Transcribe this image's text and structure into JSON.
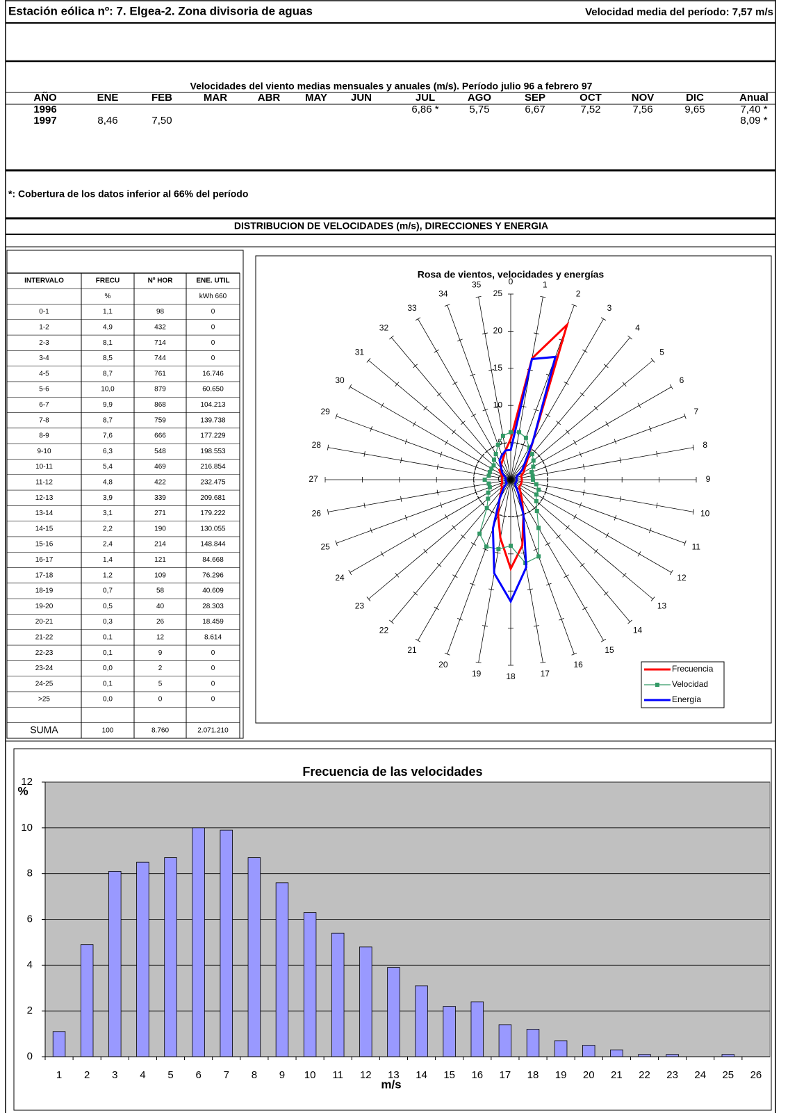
{
  "header": {
    "title": "Estación eólica nº: 7. Elgea-2. Zona divisoria de aguas",
    "mean_speed": "Velocidad media del período: 7,57 m/s"
  },
  "monthly_table": {
    "title": "Velocidades del viento medias mensuales y anuales (m/s). Período julio 96 a febrero 97",
    "columns": [
      "AÑO",
      "ENE",
      "FEB",
      "MAR",
      "ABR",
      "MAY",
      "JUN",
      "JUL",
      "AGO",
      "SEP",
      "OCT",
      "NOV",
      "DIC",
      "Anual"
    ],
    "rows": [
      [
        "1996",
        null,
        null,
        null,
        null,
        null,
        null,
        "6,86 *",
        "5,75",
        "6,67",
        "7,52",
        "7,56",
        "9,65",
        "7,40 *"
      ],
      [
        "1997",
        "8,46",
        "7,50",
        null,
        null,
        null,
        null,
        null,
        null,
        null,
        null,
        null,
        null,
        "8,09 *"
      ]
    ]
  },
  "note": "*: Cobertura de los datos inferior al 66% del período",
  "distribution": {
    "title": "DISTRIBUCION DE VELOCIDADES (m/s), DIRECCIONES Y ENERGIA",
    "columns": [
      "INTERVALO",
      "FRECU",
      "Nº HOR",
      "ENE. UTIL"
    ],
    "units": [
      null,
      "%",
      null,
      "kWh 660"
    ],
    "rows": [
      [
        "0-1",
        "1,1",
        "98",
        "0"
      ],
      [
        "1-2",
        "4,9",
        "432",
        "0"
      ],
      [
        "2-3",
        "8,1",
        "714",
        "0"
      ],
      [
        "3-4",
        "8,5",
        "744",
        "0"
      ],
      [
        "4-5",
        "8,7",
        "761",
        "16.746"
      ],
      [
        "5-6",
        "10,0",
        "879",
        "60.650"
      ],
      [
        "6-7",
        "9,9",
        "868",
        "104.213"
      ],
      [
        "7-8",
        "8,7",
        "759",
        "139.738"
      ],
      [
        "8-9",
        "7,6",
        "666",
        "177.229"
      ],
      [
        "9-10",
        "6,3",
        "548",
        "198.553"
      ],
      [
        "10-11",
        "5,4",
        "469",
        "216.854"
      ],
      [
        "11-12",
        "4,8",
        "422",
        "232.475"
      ],
      [
        "12-13",
        "3,9",
        "339",
        "209.681"
      ],
      [
        "13-14",
        "3,1",
        "271",
        "179.222"
      ],
      [
        "14-15",
        "2,2",
        "190",
        "130.055"
      ],
      [
        "15-16",
        "2,4",
        "214",
        "148.844"
      ],
      [
        "16-17",
        "1,4",
        "121",
        "84.668"
      ],
      [
        "17-18",
        "1,2",
        "109",
        "76.296"
      ],
      [
        "18-19",
        "0,7",
        "58",
        "40.609"
      ],
      [
        "19-20",
        "0,5",
        "40",
        "28.303"
      ],
      [
        "20-21",
        "0,3",
        "26",
        "18.459"
      ],
      [
        "21-22",
        "0,1",
        "12",
        "8.614"
      ],
      [
        "22-23",
        "0,1",
        "9",
        "0"
      ],
      [
        "23-24",
        "0,0",
        "2",
        "0"
      ],
      [
        "24-25",
        "0,1",
        "5",
        "0"
      ],
      [
        ">25",
        "0,0",
        "0",
        "0"
      ]
    ],
    "total": [
      "SUMA",
      "100",
      "8.760",
      "2.071.210"
    ]
  },
  "chart_data": [
    {
      "type": "radar",
      "title": "Rosa de vientos, velocidades y energías",
      "categories": [
        "0",
        "1",
        "2",
        "3",
        "4",
        "5",
        "6",
        "7",
        "8",
        "9",
        "10",
        "11",
        "12",
        "13",
        "14",
        "15",
        "16",
        "17",
        "18",
        "19",
        "20",
        "21",
        "22",
        "23",
        "24",
        "25",
        "26",
        "27",
        "28",
        "29",
        "30",
        "31",
        "32",
        "33",
        "34",
        "35"
      ],
      "ylim": [
        0,
        25
      ],
      "yticks": [
        0,
        5,
        10,
        15,
        20,
        25
      ],
      "legend": "lower right",
      "series": [
        {
          "name": "Frecuencia",
          "color": "#ff0000",
          "values": [
            5.5,
            16.6,
            22.2,
            6,
            3.5,
            2.5,
            2,
            1.5,
            1.5,
            1.5,
            1.5,
            1.5,
            1.5,
            1.5,
            2,
            3,
            5,
            9,
            12,
            8,
            5,
            3,
            2,
            1.5,
            1.5,
            1.2,
            1.2,
            1.2,
            1.2,
            1.2,
            1.5,
            2,
            2,
            2.5,
            3,
            4
          ]
        },
        {
          "name": "Velocidad",
          "color": "#339966",
          "values": [
            6.4,
            6.5,
            6,
            5,
            4.5,
            4,
            3.5,
            3,
            3,
            3,
            3.5,
            4,
            4,
            4.5,
            5.5,
            7.5,
            11,
            11.4,
            8.9,
            9.5,
            9.6,
            8.4,
            5,
            4,
            3.5,
            3,
            3,
            3.5,
            3,
            3,
            3,
            3,
            3.5,
            4,
            5,
            6
          ]
        },
        {
          "name": "Energía",
          "color": "#0000ff",
          "values": [
            4,
            16.5,
            17.6,
            6,
            3,
            2,
            1,
            0.8,
            0.8,
            0.8,
            0.8,
            0.8,
            0.8,
            0.8,
            1,
            2,
            5,
            12,
            16.4,
            12.8,
            7,
            3,
            1.5,
            0.7,
            0.7,
            0.7,
            0.7,
            0.7,
            0.7,
            0.7,
            1,
            1.5,
            2,
            3,
            3.5,
            4
          ]
        }
      ]
    },
    {
      "type": "bar",
      "title": "Frecuencia de las velocidades",
      "y_label": "%",
      "x_label": "m/s",
      "categories": [
        "1",
        "2",
        "3",
        "4",
        "5",
        "6",
        "7",
        "8",
        "9",
        "10",
        "11",
        "12",
        "13",
        "14",
        "15",
        "16",
        "17",
        "18",
        "19",
        "20",
        "21",
        "22",
        "23",
        "24",
        "25",
        "26"
      ],
      "values": [
        1.1,
        4.9,
        8.1,
        8.5,
        8.7,
        10.0,
        9.9,
        8.7,
        7.6,
        6.3,
        5.4,
        4.8,
        3.9,
        3.1,
        2.2,
        2.4,
        1.4,
        1.2,
        0.7,
        0.5,
        0.3,
        0.1,
        0.1,
        0.0,
        0.1,
        0.0
      ],
      "color": "#9999ff",
      "ylim": [
        0,
        12
      ],
      "yticks": [
        0,
        2,
        4,
        6,
        8,
        10,
        12
      ],
      "grid": true
    }
  ]
}
